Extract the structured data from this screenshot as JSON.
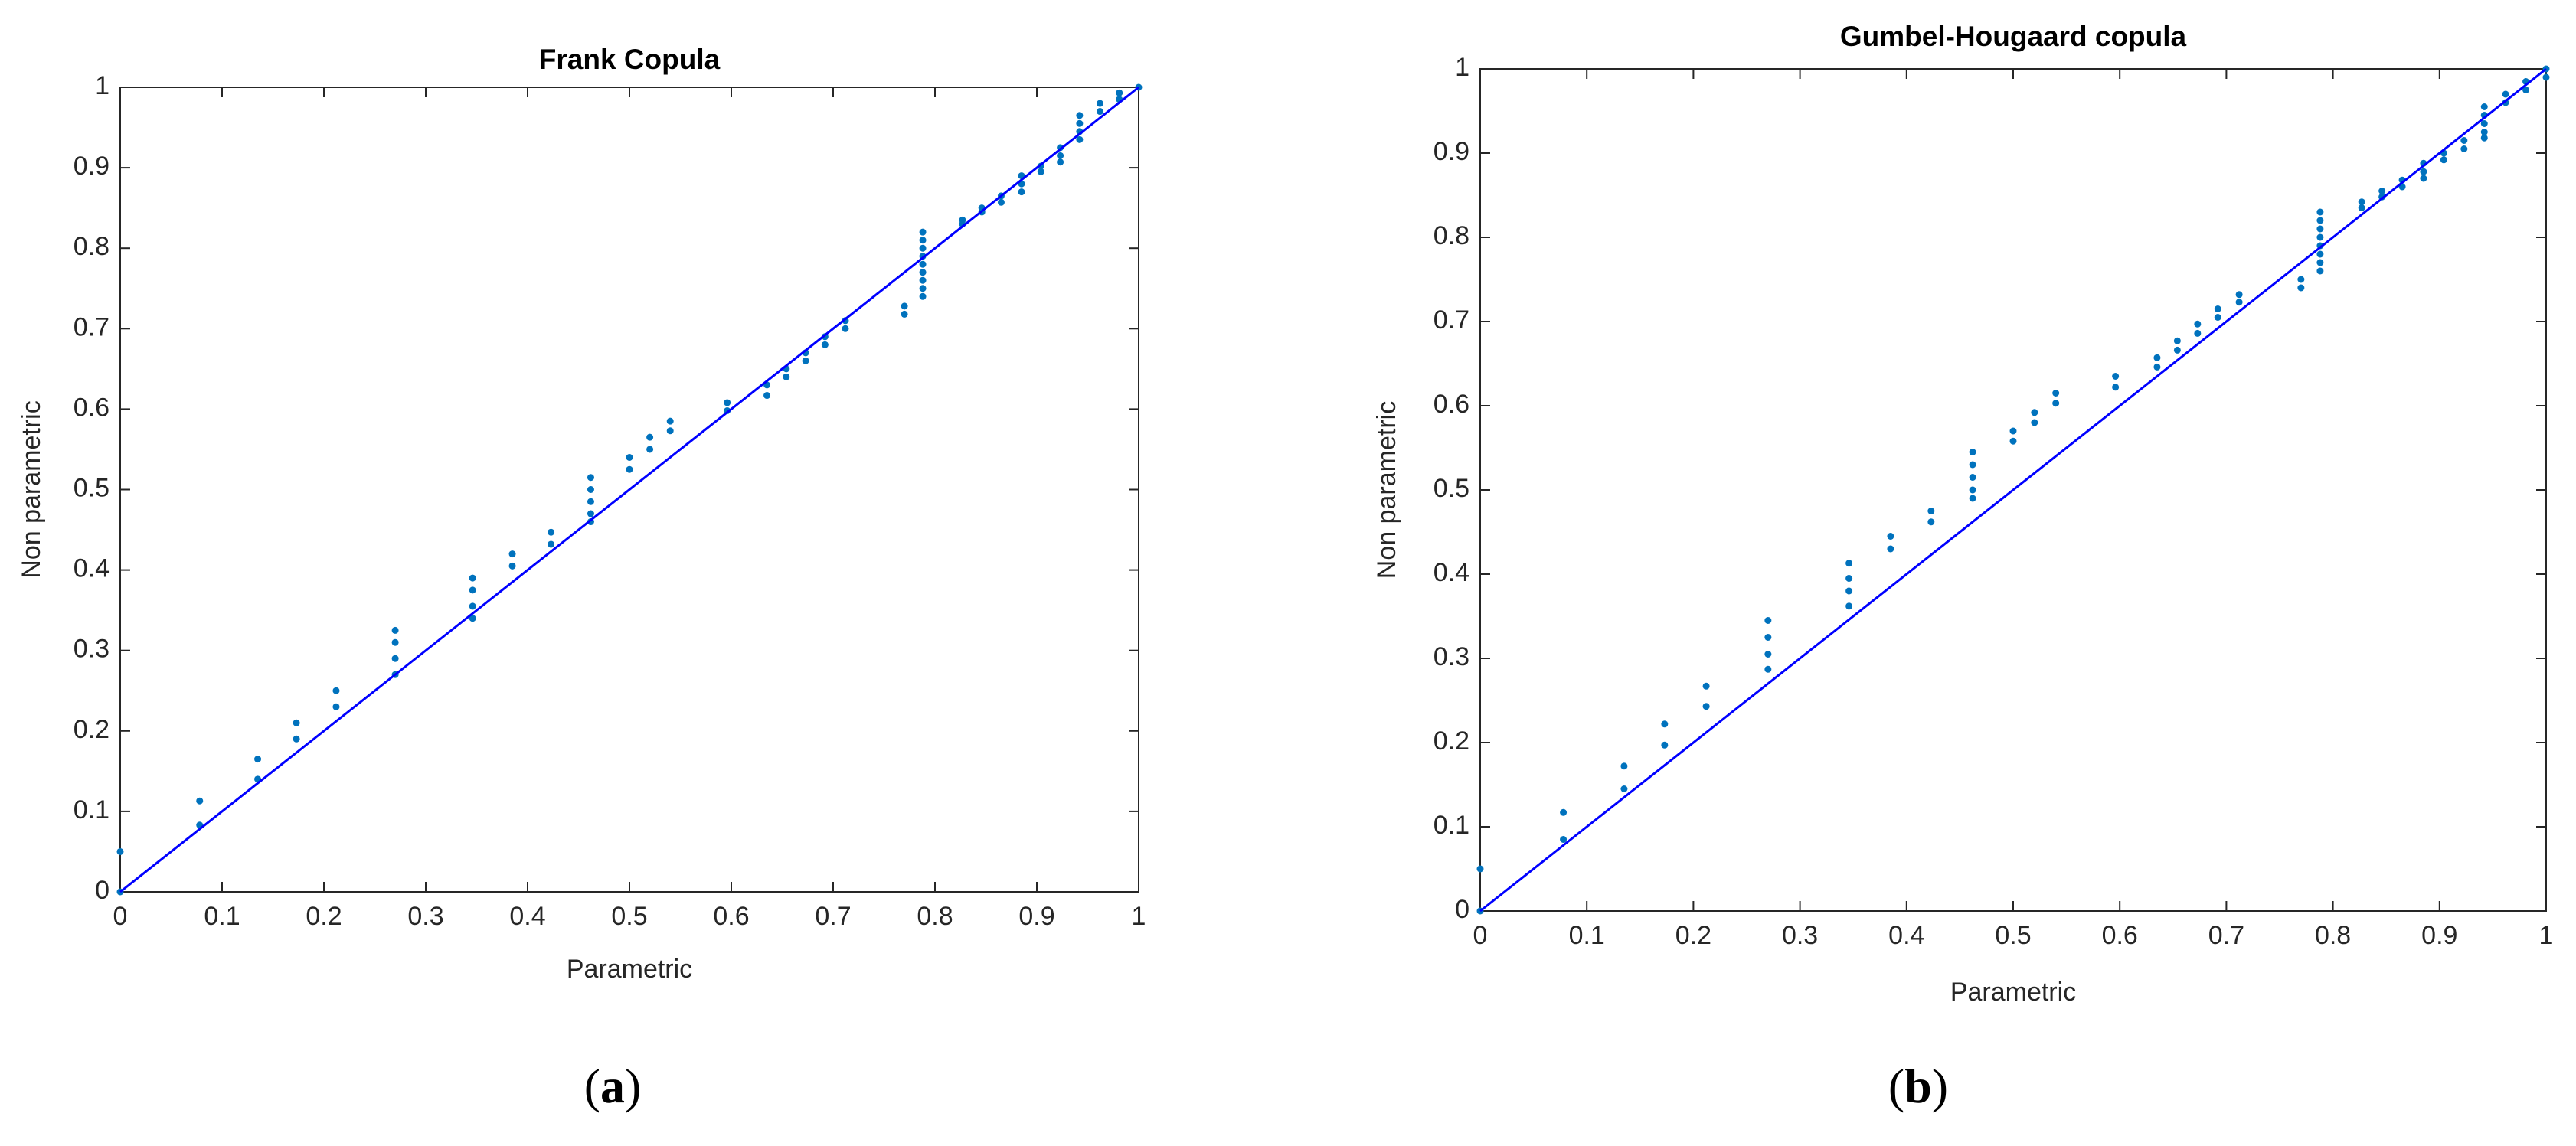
{
  "chart_data": [
    {
      "type": "scatter",
      "title": "Frank Copula",
      "x_label": "Parametric",
      "y_label": "Non parametric",
      "label_open": "(",
      "label": "a",
      "label_close": ")",
      "xlim": [
        0,
        1
      ],
      "ylim": [
        0,
        1
      ],
      "xticks": [
        0,
        0.1,
        0.2,
        0.3,
        0.4,
        0.5,
        0.6,
        0.7,
        0.8,
        0.9,
        1
      ],
      "yticks": [
        0,
        0.1,
        0.2,
        0.3,
        0.4,
        0.5,
        0.6,
        0.7,
        0.8,
        0.9,
        1
      ],
      "series": [
        {
          "type": "scatter",
          "color": "#0072bd",
          "x": [
            0,
            0,
            0.078,
            0.078,
            0.135,
            0.135,
            0.173,
            0.173,
            0.212,
            0.212,
            0.27,
            0.27,
            0.27,
            0.27,
            0.346,
            0.346,
            0.346,
            0.346,
            0.385,
            0.385,
            0.423,
            0.423,
            0.462,
            0.462,
            0.462,
            0.462,
            0.462,
            0.5,
            0.5,
            0.52,
            0.52,
            0.54,
            0.54,
            0.596,
            0.596,
            0.635,
            0.635,
            0.654,
            0.654,
            0.673,
            0.673,
            0.692,
            0.692,
            0.712,
            0.712,
            0.77,
            0.77,
            0.788,
            0.788,
            0.788,
            0.788,
            0.788,
            0.788,
            0.788,
            0.788,
            0.788,
            0.827,
            0.827,
            0.846,
            0.846,
            0.865,
            0.865,
            0.885,
            0.885,
            0.885,
            0.904,
            0.904,
            0.923,
            0.923,
            0.923,
            0.942,
            0.942,
            0.942,
            0.942,
            0.962,
            0.962,
            0.981,
            0.981,
            1
          ],
          "values": [
            0.05,
            0,
            0.113,
            0.083,
            0.165,
            0.14,
            0.21,
            0.19,
            0.25,
            0.23,
            0.325,
            0.31,
            0.29,
            0.27,
            0.39,
            0.375,
            0.355,
            0.34,
            0.42,
            0.405,
            0.447,
            0.432,
            0.515,
            0.5,
            0.485,
            0.47,
            0.46,
            0.54,
            0.525,
            0.565,
            0.55,
            0.585,
            0.573,
            0.608,
            0.598,
            0.63,
            0.617,
            0.65,
            0.64,
            0.67,
            0.66,
            0.69,
            0.68,
            0.71,
            0.7,
            0.728,
            0.718,
            0.82,
            0.81,
            0.8,
            0.79,
            0.78,
            0.77,
            0.76,
            0.75,
            0.74,
            0.835,
            0.83,
            0.85,
            0.845,
            0.865,
            0.857,
            0.89,
            0.88,
            0.87,
            0.902,
            0.895,
            0.925,
            0.915,
            0.907,
            0.965,
            0.955,
            0.945,
            0.935,
            0.98,
            0.97,
            0.993,
            0.985,
            1
          ]
        },
        {
          "type": "line",
          "color": "#0000ff",
          "x": [
            0,
            1
          ],
          "values": [
            0,
            1
          ]
        }
      ]
    },
    {
      "type": "scatter",
      "title": "Gumbel-Hougaard copula",
      "x_label": "Parametric",
      "y_label": "Non parametric",
      "label_open": "(",
      "label": "b",
      "label_close": ")",
      "xlim": [
        0,
        1
      ],
      "ylim": [
        0,
        1
      ],
      "xticks": [
        0,
        0.1,
        0.2,
        0.3,
        0.4,
        0.5,
        0.6,
        0.7,
        0.8,
        0.9,
        1
      ],
      "yticks": [
        0,
        0.1,
        0.2,
        0.3,
        0.4,
        0.5,
        0.6,
        0.7,
        0.8,
        0.9,
        1
      ],
      "series": [
        {
          "type": "scatter",
          "color": "#0072bd",
          "x": [
            0,
            0,
            0.078,
            0.078,
            0.135,
            0.135,
            0.173,
            0.173,
            0.212,
            0.212,
            0.27,
            0.27,
            0.27,
            0.27,
            0.346,
            0.346,
            0.346,
            0.346,
            0.385,
            0.385,
            0.423,
            0.423,
            0.462,
            0.462,
            0.462,
            0.462,
            0.462,
            0.5,
            0.5,
            0.52,
            0.52,
            0.54,
            0.54,
            0.596,
            0.596,
            0.635,
            0.635,
            0.654,
            0.654,
            0.673,
            0.673,
            0.692,
            0.692,
            0.712,
            0.712,
            0.77,
            0.77,
            0.788,
            0.788,
            0.788,
            0.788,
            0.788,
            0.788,
            0.788,
            0.788,
            0.827,
            0.827,
            0.846,
            0.846,
            0.865,
            0.865,
            0.885,
            0.885,
            0.885,
            0.904,
            0.904,
            0.923,
            0.923,
            0.942,
            0.942,
            0.942,
            0.942,
            0.942,
            0.962,
            0.962,
            0.981,
            0.981,
            1,
            1
          ],
          "values": [
            0.05,
            0,
            0.117,
            0.085,
            0.172,
            0.145,
            0.222,
            0.197,
            0.267,
            0.243,
            0.345,
            0.325,
            0.305,
            0.287,
            0.413,
            0.395,
            0.38,
            0.362,
            0.445,
            0.43,
            0.475,
            0.462,
            0.545,
            0.53,
            0.515,
            0.5,
            0.49,
            0.57,
            0.558,
            0.592,
            0.58,
            0.615,
            0.603,
            0.635,
            0.622,
            0.657,
            0.646,
            0.677,
            0.666,
            0.697,
            0.686,
            0.715,
            0.705,
            0.732,
            0.723,
            0.75,
            0.74,
            0.83,
            0.82,
            0.81,
            0.8,
            0.79,
            0.78,
            0.77,
            0.76,
            0.842,
            0.835,
            0.855,
            0.848,
            0.868,
            0.86,
            0.888,
            0.878,
            0.87,
            0.9,
            0.892,
            0.915,
            0.905,
            0.955,
            0.945,
            0.935,
            0.925,
            0.918,
            0.97,
            0.96,
            0.985,
            0.975,
            1,
            0.99
          ]
        },
        {
          "type": "line",
          "color": "#0000ff",
          "x": [
            0,
            1
          ],
          "values": [
            0,
            1
          ]
        }
      ]
    }
  ]
}
